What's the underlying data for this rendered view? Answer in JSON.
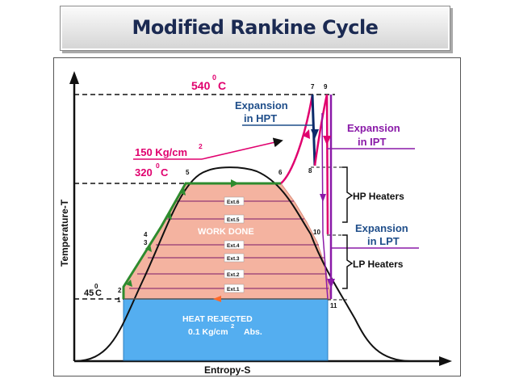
{
  "title": "Modified Rankine Cycle",
  "diagram": {
    "y_axis_label": "Temperature-T",
    "x_axis_label": "Entropy-S",
    "labels": {
      "t_540": "540",
      "t_540_sup": "0",
      "t_540_unit": "C",
      "pressure_150": "150 Kg/cm",
      "pressure_150_sup": "2",
      "t_320": "320",
      "t_320_sup": "0",
      "t_320_unit": "C",
      "t_45_sup": "0",
      "t_45": "45",
      "t_45_unit": "C",
      "expansion_hpt_1": "Expansion",
      "expansion_hpt_2": "in HPT",
      "expansion_ipt_1": "Expansion",
      "expansion_ipt_2": "in IPT",
      "expansion_lpt_1": "Expansion",
      "expansion_lpt_2": "in LPT",
      "hp_heaters": "HP Heaters",
      "lp_heaters": "LP Heaters",
      "work_done": "WORK DONE",
      "heat_rejected": "HEAT REJECTED",
      "heat_rejected_pressure": "0.1 Kg/cm",
      "heat_rejected_sup": "2",
      "heat_rejected_suffix": "Abs."
    },
    "points": [
      "1",
      "2",
      "3",
      "4",
      "5",
      "6",
      "7",
      "8",
      "9",
      "10",
      "11"
    ],
    "extractions": [
      "Ext.6",
      "Ext.5",
      "Ext.4",
      "Ext.3",
      "Ext.2",
      "Ext.1"
    ]
  },
  "colors": {
    "title_text": "#1b2a52",
    "work_done_fill": "#f4b3a0",
    "heat_rejected_fill": "#54aef0",
    "feed_line": "#2e8b2e",
    "hpt_line": "#0b2a6a",
    "reheat_line": "#e0006e",
    "ipt_line": "#8a1aa8",
    "label_red": "#e0006e",
    "label_blue": "#1f4e8a",
    "label_purple": "#8a1aa8"
  }
}
